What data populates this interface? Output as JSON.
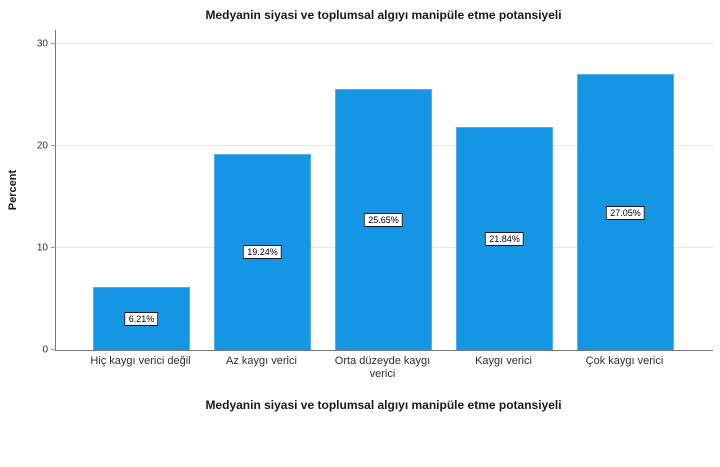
{
  "chart_data": {
    "type": "bar",
    "title": "Medyanin siyasi ve toplumsal algıyı manipüle etme potansiyeli",
    "xlabel": "Medyanin siyasi ve toplumsal algıyı manipüle etme potansiyeli",
    "ylabel": "Percent",
    "categories": [
      "Hiç kaygı verici değil",
      "Az kaygı verici",
      "Orta düzeyde kaygı verici",
      "Kaygı verici",
      "Çok kaygı verici"
    ],
    "values": [
      6.21,
      19.24,
      25.65,
      21.84,
      27.05
    ],
    "value_labels": [
      "6.21%",
      "19.24%",
      "25.65%",
      "21.84%",
      "27.05%"
    ],
    "yticks": [
      0,
      10,
      20,
      30
    ],
    "ylim": [
      0,
      31.4
    ],
    "grid": "horizontal",
    "legend": "none",
    "bar_color": "#1496e4",
    "bar_border_color": "#55aeea",
    "gridline_color": "#e6e6e6",
    "axis_color": "#757575"
  }
}
